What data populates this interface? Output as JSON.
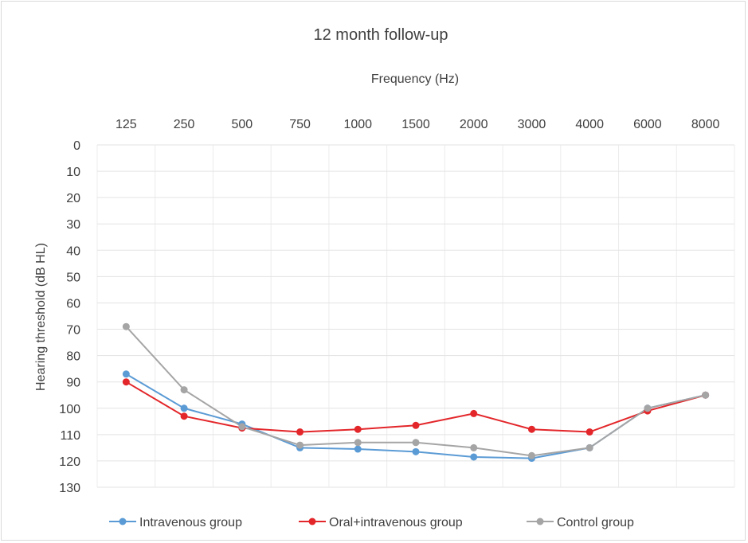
{
  "chart_data": {
    "type": "line",
    "title": "12 month follow-up",
    "xlabel": "Frequency (Hz)",
    "ylabel": "Hearing threshold (dB HL)",
    "categories": [
      "125",
      "250",
      "500",
      "750",
      "1000",
      "1500",
      "2000",
      "3000",
      "4000",
      "6000",
      "8000"
    ],
    "y_ticks": [
      "0",
      "10",
      "20",
      "30",
      "40",
      "50",
      "60",
      "70",
      "80",
      "90",
      "100",
      "110",
      "120",
      "130"
    ],
    "ylim": [
      0,
      130
    ],
    "y_inverted": true,
    "x_axis_position": "top",
    "grid": true,
    "legend_position": "bottom",
    "series": [
      {
        "name": "Intravenous group",
        "color": "#5b9bd5",
        "values": [
          87,
          100,
          106,
          115,
          115.5,
          116.5,
          118.5,
          119,
          115,
          100,
          95
        ]
      },
      {
        "name": "Oral+intravenous group",
        "color": "#e3262a",
        "values": [
          90,
          103,
          107.5,
          109,
          108,
          106.5,
          102,
          108,
          109,
          101,
          95
        ]
      },
      {
        "name": "Control group",
        "color": "#a5a5a5",
        "values": [
          69,
          93,
          107,
          114,
          113,
          113,
          115,
          118,
          115,
          100,
          95
        ]
      }
    ]
  }
}
